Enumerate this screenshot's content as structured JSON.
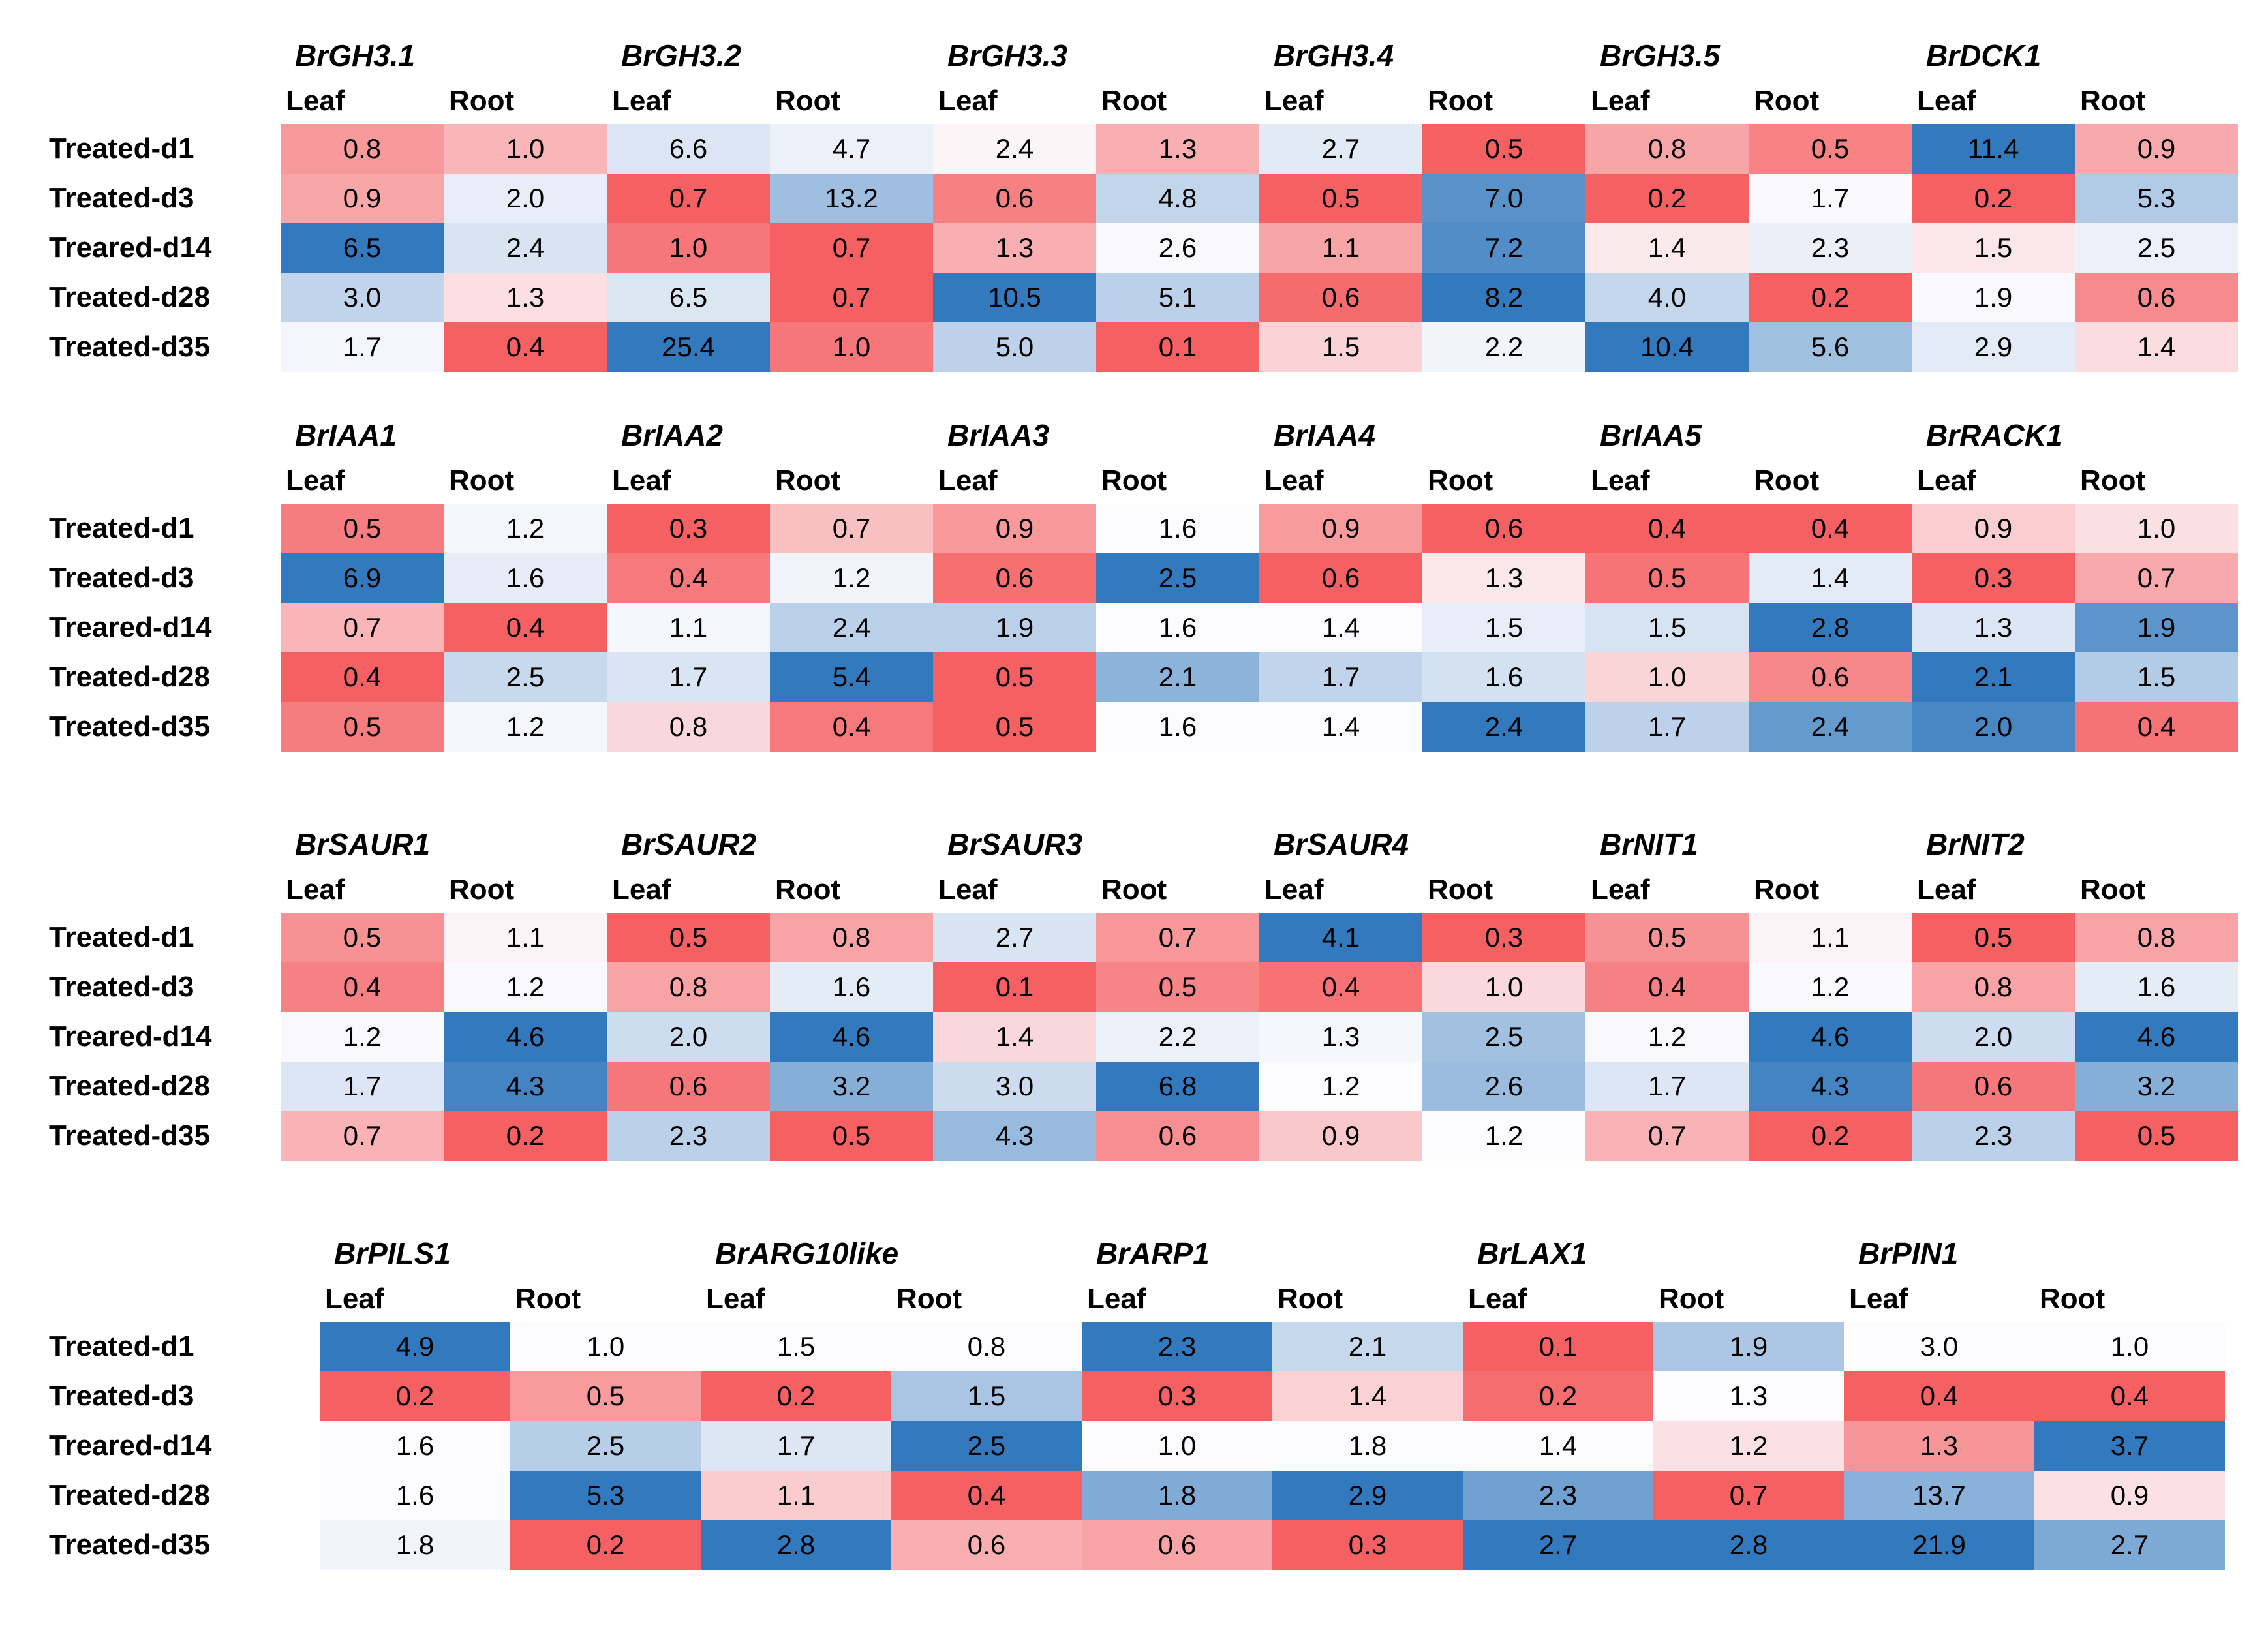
{
  "chart_data": {
    "type": "heatmap",
    "title": "",
    "description": "Fold-change heatmap table of auxin-related Brassica genes in Leaf and Root across treatment time points; red = low, white = mid, blue = high within each gene's color scale",
    "row_labels": [
      "Treated-d1",
      "Treated-d3",
      "Treared-d14",
      "Treated-d28",
      "Treated-d35"
    ],
    "tissue_labels": [
      "Leaf",
      "Root"
    ],
    "color_scale": {
      "low_color": "#F56163",
      "mid_color": "#FCFBFE",
      "high_color": "#3379BD",
      "mapping": "3-color scale per scope: minimum -> red, 50th percentile -> white, maximum -> blue"
    },
    "blocks": [
      {
        "scale_scope": "gene-pair",
        "genes": [
          {
            "name": "BrGH3.1",
            "leaf": [
              "0.8",
              "0.9",
              "6.5",
              "3.0",
              "1.7"
            ],
            "root": [
              "1.0",
              "2.0",
              "2.4",
              "1.3",
              "0.4"
            ]
          },
          {
            "name": "BrGH3.2",
            "leaf": [
              "6.6",
              "0.7",
              "1.0",
              "6.5",
              "25.4"
            ],
            "root": [
              "4.7",
              "13.2",
              "0.7",
              "0.7",
              "1.0"
            ]
          },
          {
            "name": "BrGH3.3",
            "leaf": [
              "2.4",
              "0.6",
              "1.3",
              "10.5",
              "5.0"
            ],
            "root": [
              "1.3",
              "4.8",
              "2.6",
              "5.1",
              "0.1"
            ]
          },
          {
            "name": "BrGH3.4",
            "leaf": [
              "2.7",
              "0.5",
              "1.1",
              "0.6",
              "1.5"
            ],
            "root": [
              "0.5",
              "7.0",
              "7.2",
              "8.2",
              "2.2"
            ]
          },
          {
            "name": "BrGH3.5",
            "leaf": [
              "0.8",
              "0.2",
              "1.4",
              "4.0",
              "10.4"
            ],
            "root": [
              "0.5",
              "1.7",
              "2.3",
              "0.2",
              "5.6"
            ]
          },
          {
            "name": "BrDCK1",
            "leaf": [
              "11.4",
              "0.2",
              "1.5",
              "1.9",
              "2.9"
            ],
            "root": [
              "0.9",
              "5.3",
              "2.5",
              "0.6",
              "1.4"
            ]
          }
        ]
      },
      {
        "scale_scope": "gene-pair",
        "genes": [
          {
            "name": "BrIAA1",
            "leaf": [
              "0.5",
              "6.9",
              "0.7",
              "0.4",
              "0.5"
            ],
            "root": [
              "1.2",
              "1.6",
              "0.4",
              "2.5",
              "1.2"
            ]
          },
          {
            "name": "BrIAA2",
            "leaf": [
              "0.3",
              "0.4",
              "1.1",
              "1.7",
              "0.8"
            ],
            "root": [
              "0.7",
              "1.2",
              "2.4",
              "5.4",
              "0.4"
            ]
          },
          {
            "name": "BrIAA3",
            "leaf": [
              "0.9",
              "0.6",
              "1.9",
              "0.5",
              "0.5"
            ],
            "root": [
              "1.6",
              "2.5",
              "1.6",
              "2.1",
              "1.6"
            ]
          },
          {
            "name": "BrIAA4",
            "leaf": [
              "0.9",
              "0.6",
              "1.4",
              "1.7",
              "1.4"
            ],
            "root": [
              "0.6",
              "1.3",
              "1.5",
              "1.6",
              "2.4"
            ]
          },
          {
            "name": "BrIAA5",
            "leaf": [
              "0.4",
              "0.5",
              "1.5",
              "1.0",
              "1.7"
            ],
            "root": [
              "0.4",
              "1.4",
              "2.8",
              "0.6",
              "2.4"
            ]
          },
          {
            "name": "BrRACK1",
            "leaf": [
              "0.9",
              "0.3",
              "1.3",
              "2.1",
              "2.0"
            ],
            "root": [
              "1.0",
              "0.7",
              "1.9",
              "1.5",
              "0.4"
            ]
          }
        ]
      },
      {
        "scale_scope": "gene-pair",
        "genes": [
          {
            "name": "BrSAUR1",
            "leaf": [
              "0.5",
              "0.4",
              "1.2",
              "1.7",
              "0.7"
            ],
            "root": [
              "1.1",
              "1.2",
              "4.6",
              "4.3",
              "0.2"
            ]
          },
          {
            "name": "BrSAUR2",
            "leaf": [
              "0.5",
              "0.8",
              "2.0",
              "0.6",
              "2.3"
            ],
            "root": [
              "0.8",
              "1.6",
              "4.6",
              "3.2",
              "0.5"
            ]
          },
          {
            "name": "BrSAUR3",
            "leaf": [
              "2.7",
              "0.1",
              "1.4",
              "3.0",
              "4.3"
            ],
            "root": [
              "0.7",
              "0.5",
              "2.2",
              "6.8",
              "0.6"
            ]
          },
          {
            "name": "BrSAUR4",
            "leaf": [
              "4.1",
              "0.4",
              "1.3",
              "1.2",
              "0.9"
            ],
            "root": [
              "0.3",
              "1.0",
              "2.5",
              "2.6",
              "1.2"
            ]
          },
          {
            "name": "BrNIT1",
            "leaf": [
              "0.5",
              "0.4",
              "1.2",
              "1.7",
              "0.7"
            ],
            "root": [
              "1.1",
              "1.2",
              "4.6",
              "4.3",
              "0.2"
            ]
          },
          {
            "name": "BrNIT2",
            "leaf": [
              "0.5",
              "0.8",
              "2.0",
              "0.6",
              "2.3"
            ],
            "root": [
              "0.8",
              "1.6",
              "4.6",
              "3.2",
              "0.5"
            ]
          }
        ]
      },
      {
        "scale_scope": "column",
        "genes": [
          {
            "name": "BrPILS1",
            "leaf": [
              "4.9",
              "0.2",
              "1.6",
              "1.6",
              "1.8"
            ],
            "root": [
              "1.0",
              "0.5",
              "2.5",
              "5.3",
              "0.2"
            ]
          },
          {
            "name": "BrARG10like",
            "leaf": [
              "1.5",
              "0.2",
              "1.7",
              "1.1",
              "2.8"
            ],
            "root": [
              "0.8",
              "1.5",
              "2.5",
              "0.4",
              "0.6"
            ]
          },
          {
            "name": "BrARP1",
            "leaf": [
              "2.3",
              "0.3",
              "1.0",
              "1.8",
              "0.6"
            ],
            "root": [
              "2.1",
              "1.4",
              "1.8",
              "2.9",
              "0.3"
            ]
          },
          {
            "name": "BrLAX1",
            "leaf": [
              "0.1",
              "0.2",
              "1.4",
              "2.3",
              "2.7"
            ],
            "root": [
              "1.9",
              "1.3",
              "1.2",
              "0.7",
              "2.8"
            ]
          },
          {
            "name": "BrPIN1",
            "leaf": [
              "3.0",
              "0.4",
              "1.3",
              "13.7",
              "21.9"
            ],
            "root": [
              "1.0",
              "0.4",
              "3.7",
              "0.9",
              "2.7"
            ]
          }
        ]
      }
    ]
  }
}
